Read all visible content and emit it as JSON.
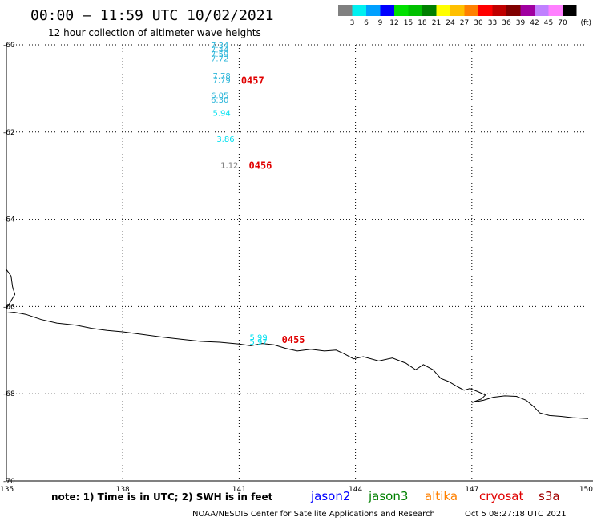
{
  "header": {
    "title": "00:00 – 11:59 UTC 10/02/2021",
    "subtitle": "12 hour collection of altimeter wave heights"
  },
  "legend": {
    "unit": "(ft)",
    "bins": [
      {
        "label": "3",
        "color": "#808080"
      },
      {
        "label": "6",
        "color": "#00f0f0"
      },
      {
        "label": "9",
        "color": "#00a0ff"
      },
      {
        "label": "12",
        "color": "#0000ff"
      },
      {
        "label": "15",
        "color": "#00e000"
      },
      {
        "label": "18",
        "color": "#00c000"
      },
      {
        "label": "21",
        "color": "#008000"
      },
      {
        "label": "24",
        "color": "#ffff00"
      },
      {
        "label": "27",
        "color": "#ffc000"
      },
      {
        "label": "30",
        "color": "#ff8000"
      },
      {
        "label": "33",
        "color": "#ff0000"
      },
      {
        "label": "36",
        "color": "#c00000"
      },
      {
        "label": "39",
        "color": "#800000"
      },
      {
        "label": "42",
        "color": "#a000a0"
      },
      {
        "label": "45",
        "color": "#c080ff"
      },
      {
        "label": "70",
        "color": "#ff80ff"
      },
      {
        "label": "",
        "color": "#000000"
      }
    ]
  },
  "map": {
    "lon_range": [
      135,
      150
    ],
    "lat_range": [
      -70,
      -60
    ],
    "lat_ticks": [
      {
        "value": -60,
        "label": "-60"
      },
      {
        "value": -62,
        "label": "-62"
      },
      {
        "value": -64,
        "label": "-64"
      },
      {
        "value": -66,
        "label": "-66"
      },
      {
        "value": -68,
        "label": "-68"
      },
      {
        "value": -70,
        "label": "-70"
      }
    ],
    "lon_ticks": [
      {
        "value": 135,
        "label": "135"
      },
      {
        "value": 138,
        "label": "138"
      },
      {
        "value": 141,
        "label": "141"
      },
      {
        "value": 144,
        "label": "144"
      },
      {
        "value": 147,
        "label": "147"
      },
      {
        "value": 150,
        "label": "150"
      }
    ],
    "gridlines": "dotted",
    "coastline": [
      [
        135.0,
        -65.15
      ],
      [
        135.12,
        -65.3
      ],
      [
        135.16,
        -65.55
      ],
      [
        135.22,
        -65.72
      ],
      [
        135.1,
        -65.9
      ],
      [
        135.0,
        -66.05
      ],
      [
        135.0,
        -66.15
      ],
      [
        135.2,
        -66.13
      ],
      [
        135.5,
        -66.18
      ],
      [
        135.9,
        -66.3
      ],
      [
        136.3,
        -66.38
      ],
      [
        136.8,
        -66.43
      ],
      [
        137.2,
        -66.5
      ],
      [
        137.6,
        -66.55
      ],
      [
        138.0,
        -66.58
      ],
      [
        138.5,
        -66.64
      ],
      [
        139.0,
        -66.7
      ],
      [
        139.5,
        -66.75
      ],
      [
        140.0,
        -66.8
      ],
      [
        140.5,
        -66.82
      ],
      [
        141.0,
        -66.86
      ],
      [
        141.3,
        -66.9
      ],
      [
        141.6,
        -66.85
      ],
      [
        141.9,
        -66.88
      ],
      [
        142.2,
        -66.96
      ],
      [
        142.5,
        -67.02
      ],
      [
        142.85,
        -66.98
      ],
      [
        143.2,
        -67.02
      ],
      [
        143.5,
        -67.0
      ],
      [
        143.7,
        -67.08
      ],
      [
        143.95,
        -67.2
      ],
      [
        144.2,
        -67.15
      ],
      [
        144.6,
        -67.25
      ],
      [
        144.95,
        -67.18
      ],
      [
        145.3,
        -67.3
      ],
      [
        145.55,
        -67.45
      ],
      [
        145.75,
        -67.33
      ],
      [
        146.0,
        -67.45
      ],
      [
        146.2,
        -67.65
      ],
      [
        146.4,
        -67.72
      ],
      [
        146.65,
        -67.85
      ],
      [
        146.8,
        -67.92
      ],
      [
        146.95,
        -67.88
      ],
      [
        147.15,
        -67.95
      ],
      [
        147.35,
        -68.03
      ],
      [
        147.25,
        -68.12
      ],
      [
        147.0,
        -68.2
      ],
      [
        147.3,
        -68.15
      ],
      [
        147.55,
        -68.08
      ],
      [
        147.85,
        -68.05
      ],
      [
        148.15,
        -68.06
      ],
      [
        148.4,
        -68.15
      ],
      [
        148.6,
        -68.3
      ],
      [
        148.75,
        -68.44
      ],
      [
        149.0,
        -68.5
      ],
      [
        149.3,
        -68.52
      ],
      [
        149.6,
        -68.55
      ],
      [
        150.0,
        -68.57
      ]
    ]
  },
  "observations": [
    {
      "lon": 140.5,
      "lat": -60.0,
      "value": "7.34",
      "color": "#2ab5d9"
    },
    {
      "lon": 140.5,
      "lat": -60.1,
      "value": "7.44",
      "color": "#2ab5d9"
    },
    {
      "lon": 140.5,
      "lat": -60.2,
      "value": "7.59",
      "color": "#2ab5d9"
    },
    {
      "lon": 140.5,
      "lat": -60.3,
      "value": "7.72",
      "color": "#2ab5d9"
    },
    {
      "lon": 140.55,
      "lat": -60.7,
      "value": "7.78",
      "color": "#2ab5d9"
    },
    {
      "lon": 140.55,
      "lat": -60.8,
      "value": "7.79",
      "color": "#2ab5d9"
    },
    {
      "lon": 140.5,
      "lat": -61.15,
      "value": "6.05",
      "color": "#2ab5d9"
    },
    {
      "lon": 140.5,
      "lat": -61.25,
      "value": "6.30",
      "color": "#2ab5d9"
    },
    {
      "lon": 140.55,
      "lat": -61.55,
      "value": "5.94",
      "color": "#00e0f0"
    },
    {
      "lon": 140.65,
      "lat": -62.15,
      "value": "3.86",
      "color": "#00e0f0"
    },
    {
      "lon": 140.75,
      "lat": -62.75,
      "value": "1.12",
      "color": "#808080"
    },
    {
      "lon": 141.5,
      "lat": -66.7,
      "value": "5.99",
      "color": "#00e0f0"
    },
    {
      "lon": 141.5,
      "lat": -66.8,
      "value": "5.97",
      "color": "#00e0f0"
    }
  ],
  "passes": [
    {
      "lon": 141.05,
      "lat": -60.8,
      "label": "0457"
    },
    {
      "lon": 141.25,
      "lat": -62.75,
      "label": "0456"
    },
    {
      "lon": 142.1,
      "lat": -66.75,
      "label": "0455"
    }
  ],
  "footer": {
    "note": "note: 1) Time is in UTC; 2) SWH is in feet",
    "satellites": [
      {
        "name": "jason2",
        "color": "#0000ff"
      },
      {
        "name": "jason3",
        "color": "#008000"
      },
      {
        "name": "altika",
        "color": "#ff8000"
      },
      {
        "name": "cryosat",
        "color": "#e00000"
      },
      {
        "name": "s3a",
        "color": "#a00000"
      }
    ],
    "credit": "NOAA/NESDIS Center for Satellite Applications and Research",
    "timestamp": "Oct  5 08:27:18 UTC 2021"
  }
}
